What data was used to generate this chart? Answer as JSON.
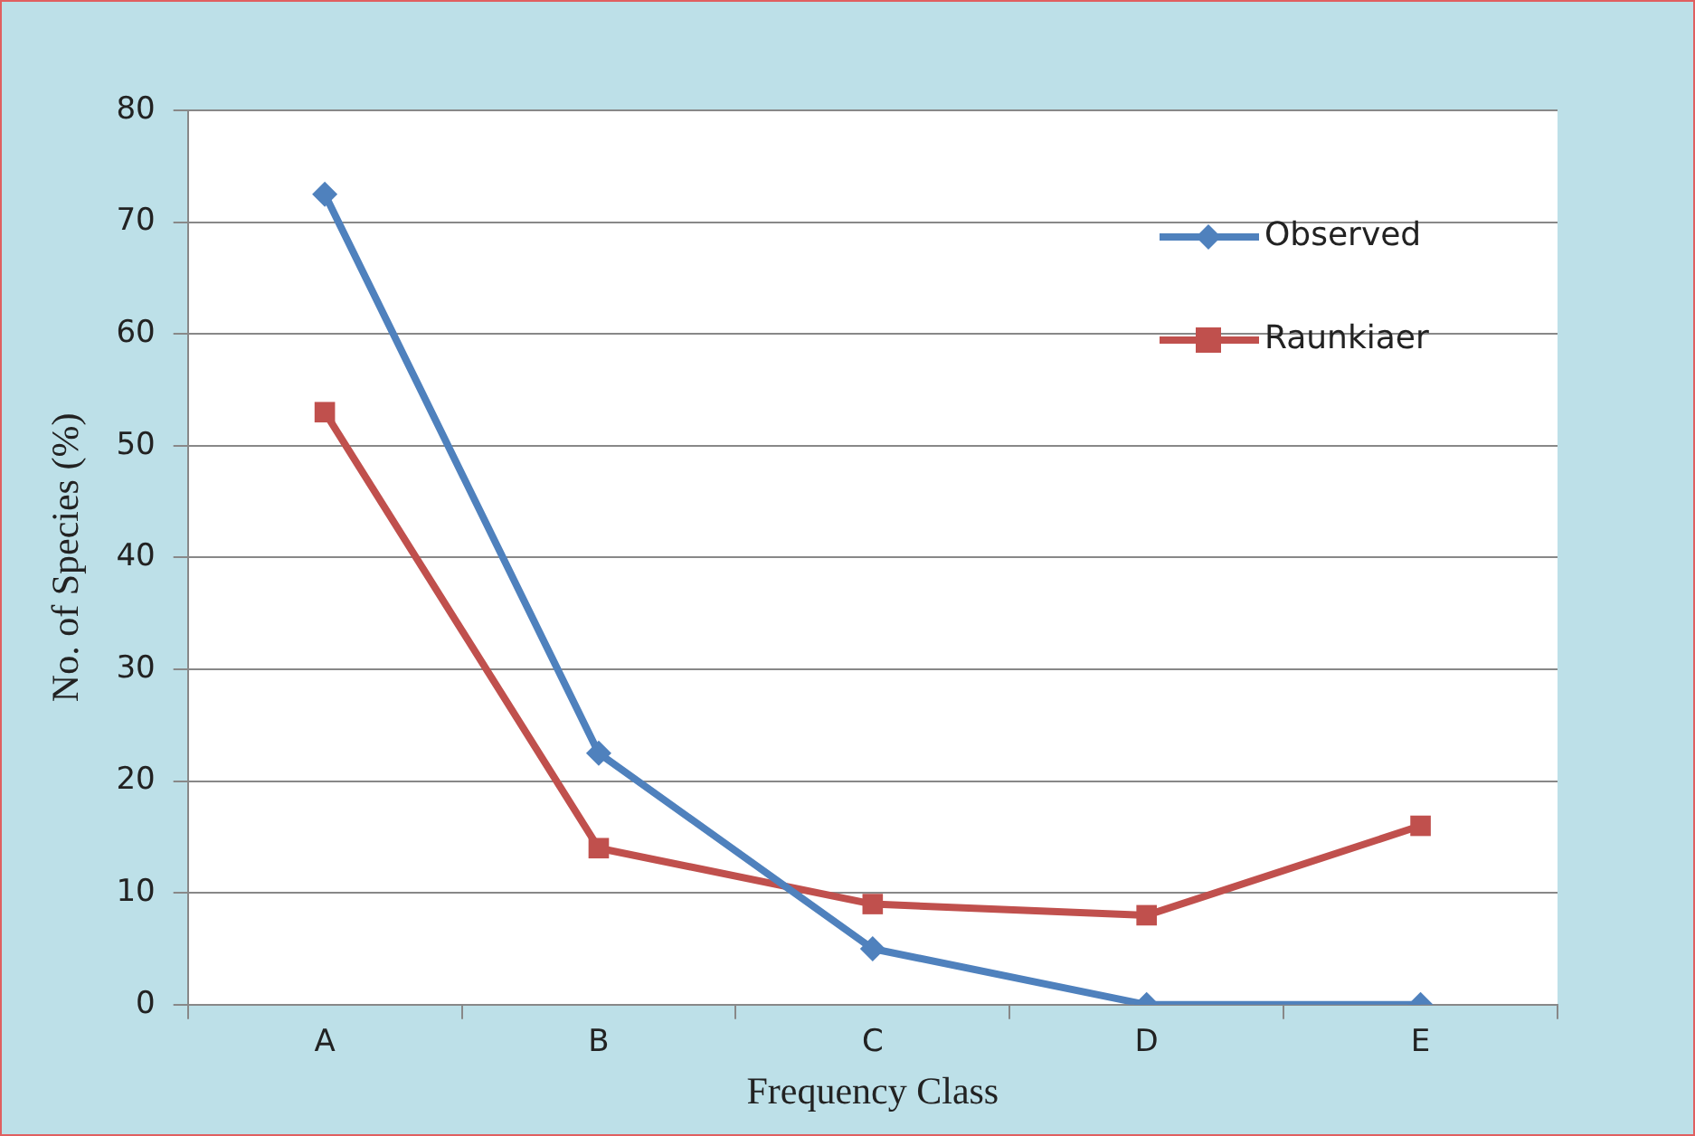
{
  "chart_data": {
    "type": "line",
    "xlabel": "Frequency Class",
    "ylabel": "No. of Species (%)",
    "categories": [
      "A",
      "B",
      "C",
      "D",
      "E"
    ],
    "series": [
      {
        "name": "Observed",
        "color": "#4f81bd",
        "marker": "diamond",
        "values": [
          72.5,
          22.5,
          5,
          0,
          0
        ]
      },
      {
        "name": "Raunkiaer",
        "color": "#c0504d",
        "marker": "square",
        "values": [
          53,
          14,
          9,
          8,
          16
        ]
      }
    ],
    "ylim": [
      0,
      80
    ],
    "yticks": [
      0,
      10,
      20,
      30,
      40,
      50,
      60,
      70,
      80
    ],
    "grid": "y",
    "legend": "top right",
    "line_style": "solid"
  }
}
